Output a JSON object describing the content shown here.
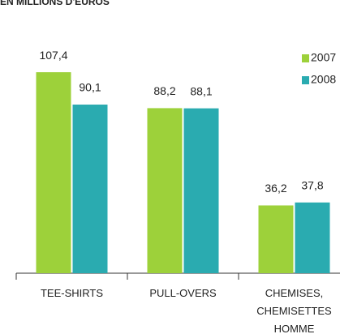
{
  "chart_data": {
    "type": "bar",
    "title": "EN MILLIONS D'EUROS",
    "categories": [
      "TEE-SHIRTS",
      "PULL-OVERS",
      "CHEMISES, CHEMISETTES HOMME"
    ],
    "series": [
      {
        "name": "2007",
        "color": "#9dd13a",
        "values": [
          107.4,
          88.2,
          36.2
        ],
        "value_labels": [
          "107,4",
          "88,2",
          "36,2"
        ]
      },
      {
        "name": "2008",
        "color": "#2aabb0",
        "values": [
          90.1,
          88.1,
          37.8
        ],
        "value_labels": [
          "90,1",
          "88,1",
          "37,8"
        ]
      }
    ],
    "ylim": [
      0,
      120
    ],
    "legend": "upper right"
  }
}
